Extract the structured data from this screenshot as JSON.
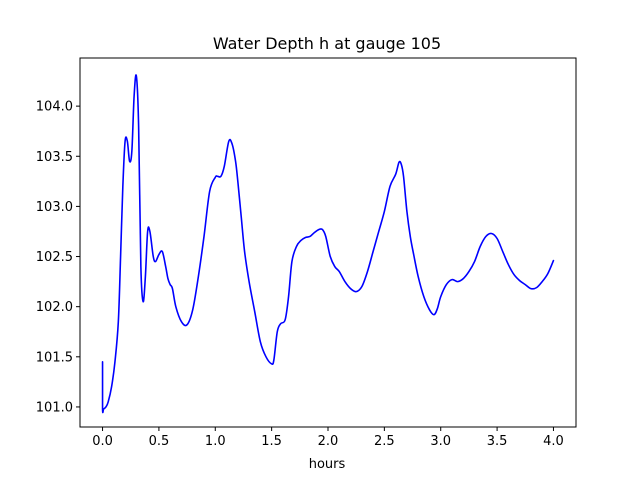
{
  "chart_data": {
    "type": "line",
    "title": "Water Depth h at gauge 105",
    "xlabel": "hours",
    "ylabel": "",
    "xlim": [
      -0.2,
      4.2
    ],
    "ylim": [
      100.8,
      104.48
    ],
    "xticks": [
      0.0,
      0.5,
      1.0,
      1.5,
      2.0,
      2.5,
      3.0,
      3.5,
      4.0
    ],
    "xtick_labels": [
      "0.0",
      "0.5",
      "1.0",
      "1.5",
      "2.0",
      "2.5",
      "3.0",
      "3.5",
      "4.0"
    ],
    "yticks": [
      101.0,
      101.5,
      102.0,
      102.5,
      103.0,
      103.5,
      104.0
    ],
    "ytick_labels": [
      "101.0",
      "101.5",
      "102.0",
      "102.5",
      "103.0",
      "103.5",
      "104.0"
    ],
    "grid": false,
    "legend": "none",
    "series": [
      {
        "color": "#0000ff",
        "x": [
          0.0,
          0.0,
          0.01,
          0.03,
          0.05,
          0.08,
          0.11,
          0.14,
          0.16,
          0.18,
          0.2,
          0.22,
          0.24,
          0.26,
          0.28,
          0.3,
          0.32,
          0.34,
          0.36,
          0.38,
          0.4,
          0.42,
          0.45,
          0.47,
          0.5,
          0.53,
          0.56,
          0.58,
          0.6,
          0.62,
          0.65,
          0.7,
          0.75,
          0.8,
          0.85,
          0.9,
          0.95,
          1.0,
          1.02,
          1.05,
          1.08,
          1.12,
          1.15,
          1.18,
          1.2,
          1.23,
          1.26,
          1.3,
          1.35,
          1.4,
          1.45,
          1.5,
          1.52,
          1.55,
          1.58,
          1.62,
          1.65,
          1.68,
          1.72,
          1.76,
          1.8,
          1.84,
          1.88,
          1.92,
          1.95,
          1.98,
          2.02,
          2.06,
          2.1,
          2.15,
          2.2,
          2.25,
          2.3,
          2.35,
          2.4,
          2.45,
          2.5,
          2.55,
          2.6,
          2.63,
          2.65,
          2.67,
          2.7,
          2.73,
          2.76,
          2.8,
          2.85,
          2.9,
          2.94,
          2.97,
          3.0,
          3.05,
          3.1,
          3.15,
          3.2,
          3.25,
          3.3,
          3.35,
          3.4,
          3.45,
          3.5,
          3.55,
          3.6,
          3.65,
          3.7,
          3.75,
          3.8,
          3.85,
          3.9,
          3.95,
          4.0
        ],
        "y": [
          101.45,
          100.98,
          100.98,
          101.0,
          101.05,
          101.2,
          101.45,
          101.85,
          102.5,
          103.2,
          103.65,
          103.65,
          103.45,
          103.55,
          104.1,
          104.3,
          103.8,
          102.4,
          102.05,
          102.3,
          102.75,
          102.75,
          102.5,
          102.45,
          102.52,
          102.55,
          102.4,
          102.28,
          102.22,
          102.18,
          102.0,
          101.85,
          101.82,
          101.97,
          102.3,
          102.7,
          103.15,
          103.29,
          103.3,
          103.3,
          103.4,
          103.65,
          103.62,
          103.45,
          103.25,
          102.9,
          102.55,
          102.25,
          101.95,
          101.65,
          101.5,
          101.43,
          101.47,
          101.75,
          101.83,
          101.87,
          102.1,
          102.45,
          102.6,
          102.66,
          102.69,
          102.7,
          102.74,
          102.77,
          102.77,
          102.7,
          102.5,
          102.4,
          102.35,
          102.25,
          102.18,
          102.15,
          102.2,
          102.35,
          102.55,
          102.75,
          102.95,
          103.2,
          103.32,
          103.44,
          103.42,
          103.3,
          102.95,
          102.7,
          102.52,
          102.3,
          102.1,
          101.97,
          101.92,
          101.98,
          102.1,
          102.22,
          102.27,
          102.25,
          102.28,
          102.35,
          102.45,
          102.6,
          102.7,
          102.73,
          102.68,
          102.55,
          102.42,
          102.32,
          102.26,
          102.22,
          102.18,
          102.19,
          102.25,
          102.33,
          102.46
        ]
      }
    ]
  }
}
